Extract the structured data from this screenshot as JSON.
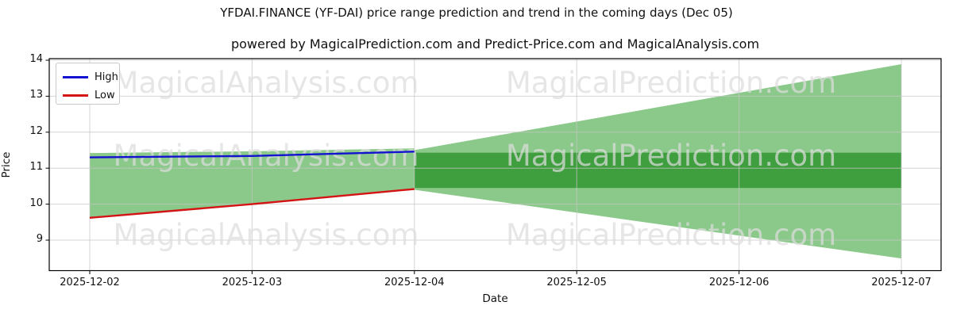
{
  "chart_data": {
    "type": "line",
    "title": "YFDAI.FINANCE (YF-DAI) price range prediction and trend in the coming days (Dec 05)",
    "subtitle": "powered by MagicalPrediction.com and Predict-Price.com and MagicalAnalysis.com",
    "xlabel": "Date",
    "ylabel": "Price",
    "x_labels": [
      "2025-12-02",
      "2025-12-03",
      "2025-12-04",
      "2025-12-05",
      "2025-12-06",
      "2025-12-07"
    ],
    "y_ticks": [
      9,
      10,
      11,
      12,
      13,
      14
    ],
    "ylim": [
      8.16,
      14.04
    ],
    "grid": true,
    "legend_position": "upper-left",
    "series": [
      {
        "name": "High",
        "color": "#1212d0",
        "x": [
          0,
          1,
          2
        ],
        "values": [
          11.3,
          11.34,
          11.46
        ]
      },
      {
        "name": "Low",
        "color": "#d41414",
        "x": [
          0,
          1,
          2
        ],
        "values": [
          9.62,
          10.0,
          10.42
        ]
      }
    ],
    "hist_band": {
      "color": "#8bc98b",
      "x": [
        0,
        1,
        2
      ],
      "top": [
        11.42,
        11.47,
        11.55
      ],
      "bottom": [
        9.62,
        10.0,
        10.42
      ]
    },
    "forecast_cone": {
      "color": "#8bc98b",
      "x": [
        2,
        5
      ],
      "top": [
        11.5,
        13.89
      ],
      "bottom": [
        10.4,
        8.49
      ]
    },
    "forecast_band": {
      "color": "#3f9e3e",
      "x_from": 2,
      "x_to": 5,
      "top": 11.43,
      "bottom": 10.45
    },
    "watermarks": {
      "left": "MagicalAnalysis.com",
      "right": "MagicalPrediction.com"
    },
    "colors": {
      "grid": "#c6c6c6",
      "spine": "#000000",
      "watermark": "#dcdcdc"
    }
  }
}
